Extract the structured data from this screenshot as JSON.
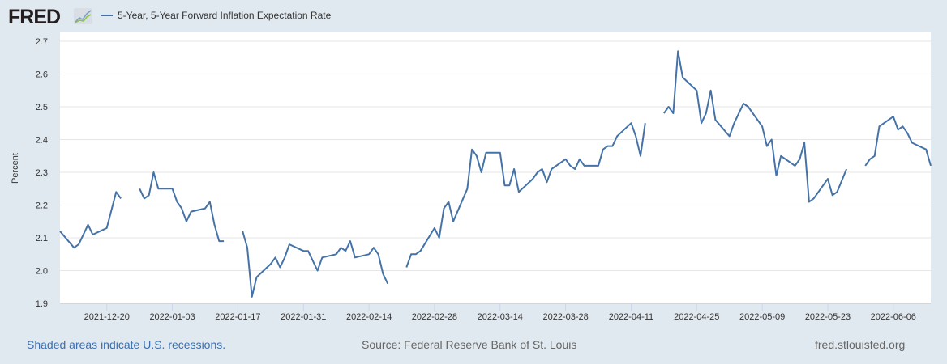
{
  "header": {
    "logo": "FRED",
    "legend_label": "5-Year, 5-Year Forward Inflation Expectation Rate"
  },
  "footer": {
    "recessions_note": "Shaded areas indicate U.S. recessions.",
    "source": "Source: Federal Reserve Bank of St. Louis",
    "site": "fred.stlouisfed.org"
  },
  "colors": {
    "series": "#4572a7",
    "background": "#e1e9f0",
    "plot": "#ffffff",
    "grid": "#e6e6e6"
  },
  "chart_data": {
    "type": "line",
    "title": "",
    "xlabel": "",
    "ylabel": "Percent",
    "ylim": [
      1.9,
      2.7
    ],
    "xlim": [
      "2021-12-10",
      "2022-06-14"
    ],
    "yticks": [
      "1.9",
      "2.0",
      "2.1",
      "2.2",
      "2.3",
      "2.4",
      "2.5",
      "2.6",
      "2.7"
    ],
    "xticks": [
      "2021-12-20",
      "2022-01-03",
      "2022-01-17",
      "2022-01-31",
      "2022-02-14",
      "2022-02-28",
      "2022-03-14",
      "2022-03-28",
      "2022-04-11",
      "2022-04-25",
      "2022-05-09",
      "2022-05-23",
      "2022-06-06"
    ],
    "grid": true,
    "legend": "top-left",
    "series": [
      {
        "name": "5-Year, 5-Year Forward Inflation Expectation Rate",
        "points": [
          [
            "2021-12-10",
            2.12
          ],
          [
            "2021-12-13",
            2.07
          ],
          [
            "2021-12-14",
            2.08
          ],
          [
            "2021-12-16",
            2.14
          ],
          [
            "2021-12-17",
            2.11
          ],
          [
            "2021-12-20",
            2.13
          ],
          [
            "2021-12-22",
            2.24
          ],
          [
            "2021-12-23",
            2.22
          ],
          [
            "2021-12-24",
            null
          ],
          [
            "2021-12-27",
            2.25
          ],
          [
            "2021-12-28",
            2.22
          ],
          [
            "2021-12-29",
            2.23
          ],
          [
            "2021-12-30",
            2.3
          ],
          [
            "2021-12-31",
            2.25
          ],
          [
            "2022-01-03",
            2.25
          ],
          [
            "2022-01-04",
            2.21
          ],
          [
            "2022-01-05",
            2.19
          ],
          [
            "2022-01-06",
            2.15
          ],
          [
            "2022-01-07",
            2.18
          ],
          [
            "2022-01-10",
            2.19
          ],
          [
            "2022-01-11",
            2.21
          ],
          [
            "2022-01-12",
            2.14
          ],
          [
            "2022-01-13",
            2.09
          ],
          [
            "2022-01-14",
            2.09
          ],
          [
            "2022-01-17",
            null
          ],
          [
            "2022-01-18",
            2.12
          ],
          [
            "2022-01-19",
            2.07
          ],
          [
            "2022-01-20",
            1.92
          ],
          [
            "2022-01-21",
            1.98
          ],
          [
            "2022-01-24",
            2.02
          ],
          [
            "2022-01-25",
            2.04
          ],
          [
            "2022-01-26",
            2.01
          ],
          [
            "2022-01-27",
            2.04
          ],
          [
            "2022-01-28",
            2.08
          ],
          [
            "2022-01-31",
            2.06
          ],
          [
            "2022-02-01",
            2.06
          ],
          [
            "2022-02-03",
            2.0
          ],
          [
            "2022-02-04",
            2.04
          ],
          [
            "2022-02-07",
            2.05
          ],
          [
            "2022-02-08",
            2.07
          ],
          [
            "2022-02-09",
            2.06
          ],
          [
            "2022-02-10",
            2.09
          ],
          [
            "2022-02-11",
            2.04
          ],
          [
            "2022-02-14",
            2.05
          ],
          [
            "2022-02-15",
            2.07
          ],
          [
            "2022-02-16",
            2.05
          ],
          [
            "2022-02-17",
            1.99
          ],
          [
            "2022-02-18",
            1.96
          ],
          [
            "2022-02-21",
            null
          ],
          [
            "2022-02-22",
            2.01
          ],
          [
            "2022-02-23",
            2.05
          ],
          [
            "2022-02-24",
            2.05
          ],
          [
            "2022-02-25",
            2.06
          ],
          [
            "2022-02-28",
            2.13
          ],
          [
            "2022-03-01",
            2.1
          ],
          [
            "2022-03-02",
            2.19
          ],
          [
            "2022-03-03",
            2.21
          ],
          [
            "2022-03-04",
            2.15
          ],
          [
            "2022-03-07",
            2.25
          ],
          [
            "2022-03-08",
            2.37
          ],
          [
            "2022-03-09",
            2.35
          ],
          [
            "2022-03-10",
            2.3
          ],
          [
            "2022-03-11",
            2.36
          ],
          [
            "2022-03-14",
            2.36
          ],
          [
            "2022-03-15",
            2.26
          ],
          [
            "2022-03-16",
            2.26
          ],
          [
            "2022-03-17",
            2.31
          ],
          [
            "2022-03-18",
            2.24
          ],
          [
            "2022-03-21",
            2.28
          ],
          [
            "2022-03-22",
            2.3
          ],
          [
            "2022-03-23",
            2.31
          ],
          [
            "2022-03-24",
            2.27
          ],
          [
            "2022-03-25",
            2.31
          ],
          [
            "2022-03-28",
            2.34
          ],
          [
            "2022-03-29",
            2.32
          ],
          [
            "2022-03-30",
            2.31
          ],
          [
            "2022-03-31",
            2.34
          ],
          [
            "2022-04-01",
            2.32
          ],
          [
            "2022-04-04",
            2.32
          ],
          [
            "2022-04-05",
            2.37
          ],
          [
            "2022-04-06",
            2.38
          ],
          [
            "2022-04-07",
            2.38
          ],
          [
            "2022-04-08",
            2.41
          ],
          [
            "2022-04-11",
            2.45
          ],
          [
            "2022-04-12",
            2.41
          ],
          [
            "2022-04-13",
            2.35
          ],
          [
            "2022-04-14",
            2.45
          ],
          [
            "2022-04-15",
            null
          ],
          [
            "2022-04-18",
            2.48
          ],
          [
            "2022-04-19",
            2.5
          ],
          [
            "2022-04-20",
            2.48
          ],
          [
            "2022-04-21",
            2.67
          ],
          [
            "2022-04-22",
            2.59
          ],
          [
            "2022-04-25",
            2.55
          ],
          [
            "2022-04-26",
            2.45
          ],
          [
            "2022-04-27",
            2.48
          ],
          [
            "2022-04-28",
            2.55
          ],
          [
            "2022-04-29",
            2.46
          ],
          [
            "2022-05-02",
            2.41
          ],
          [
            "2022-05-03",
            2.45
          ],
          [
            "2022-05-05",
            2.51
          ],
          [
            "2022-05-06",
            2.5
          ],
          [
            "2022-05-09",
            2.44
          ],
          [
            "2022-05-10",
            2.38
          ],
          [
            "2022-05-11",
            2.4
          ],
          [
            "2022-05-12",
            2.29
          ],
          [
            "2022-05-13",
            2.35
          ],
          [
            "2022-05-16",
            2.32
          ],
          [
            "2022-05-17",
            2.34
          ],
          [
            "2022-05-18",
            2.39
          ],
          [
            "2022-05-19",
            2.21
          ],
          [
            "2022-05-20",
            2.22
          ],
          [
            "2022-05-23",
            2.28
          ],
          [
            "2022-05-24",
            2.23
          ],
          [
            "2022-05-25",
            2.24
          ],
          [
            "2022-05-27",
            2.31
          ],
          [
            "2022-05-30",
            null
          ],
          [
            "2022-05-31",
            2.32
          ],
          [
            "2022-06-01",
            2.34
          ],
          [
            "2022-06-02",
            2.35
          ],
          [
            "2022-06-03",
            2.44
          ],
          [
            "2022-06-06",
            2.47
          ],
          [
            "2022-06-07",
            2.43
          ],
          [
            "2022-06-08",
            2.44
          ],
          [
            "2022-06-09",
            2.42
          ],
          [
            "2022-06-10",
            2.39
          ],
          [
            "2022-06-13",
            2.37
          ],
          [
            "2022-06-14",
            2.32
          ]
        ]
      }
    ]
  }
}
